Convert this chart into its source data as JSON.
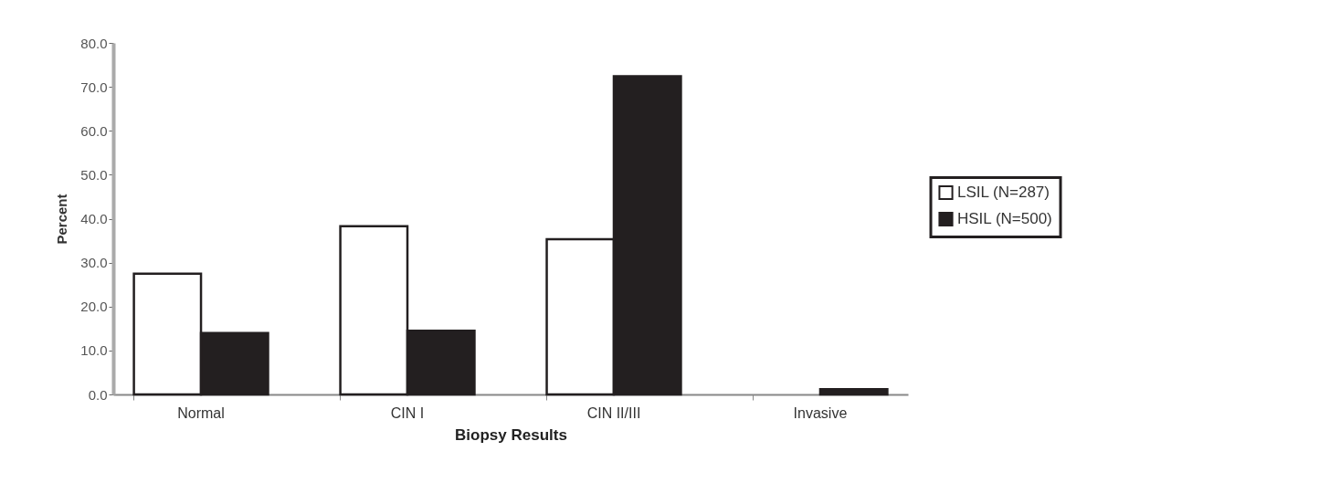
{
  "chart_data": {
    "type": "bar",
    "xlabel": "Biopsy Results",
    "ylabel": "Percent",
    "categories": [
      "Normal",
      "CIN I",
      "CIN II/III",
      "Invasive"
    ],
    "series": [
      {
        "name": "LSIL (N=287)",
        "color": "#ffffff",
        "values": [
          27.5,
          38.3,
          35.3,
          0
        ]
      },
      {
        "name": "HSIL (N=500)",
        "color": "#231f20",
        "values": [
          14.0,
          14.5,
          72.4,
          1.2
        ]
      }
    ],
    "ylim": [
      0,
      80
    ],
    "yticks": [
      {
        "value": 0,
        "label": "0.0"
      },
      {
        "value": 10,
        "label": "10.0"
      },
      {
        "value": 20,
        "label": "20.0"
      },
      {
        "value": 30,
        "label": "30.0"
      },
      {
        "value": 40,
        "label": "40.0"
      },
      {
        "value": 50,
        "label": "50.0"
      },
      {
        "value": 60,
        "label": "60.0"
      },
      {
        "value": 70,
        "label": "70.0"
      },
      {
        "value": 80,
        "label": "80.0"
      }
    ],
    "grid": false,
    "legend": "right"
  }
}
